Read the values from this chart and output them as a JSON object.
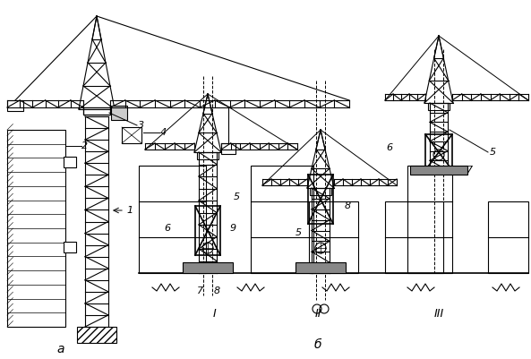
{
  "bg_color": "#ffffff",
  "line_color": "#000000",
  "figsize": [
    5.93,
    4.01
  ],
  "dpi": 100,
  "label_a": "а",
  "label_b": "б",
  "roman_I": "I",
  "roman_II": "II",
  "roman_III": "III"
}
